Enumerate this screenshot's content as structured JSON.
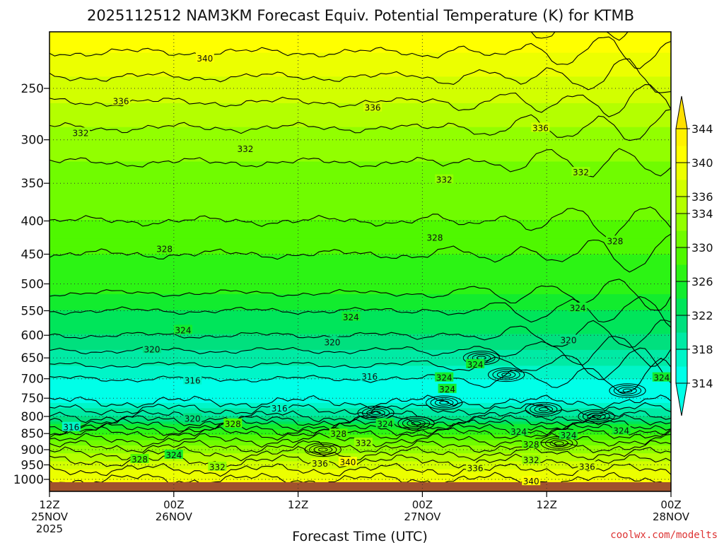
{
  "chart_data": {
    "type": "heatmap",
    "title": "2025112512 NAM3KM Forecast Equiv. Potential Temperature (K) for KTMB",
    "xlabel": "Forecast Time (UTC)",
    "ylabel": "",
    "y_axis": {
      "scale": "log",
      "inverted": true,
      "range": [
        200,
        1050
      ],
      "ticks": [
        250,
        300,
        350,
        400,
        450,
        500,
        550,
        600,
        650,
        700,
        750,
        800,
        850,
        900,
        950,
        1000
      ]
    },
    "x_axis": {
      "range_hours": [
        0,
        60
      ],
      "ticks": [
        {
          "hour": 0,
          "line1": "12Z",
          "line2": "25NOV",
          "line3": "2025"
        },
        {
          "hour": 12,
          "line1": "00Z",
          "line2": "26NOV",
          "line3": ""
        },
        {
          "hour": 24,
          "line1": "12Z",
          "line2": "",
          "line3": ""
        },
        {
          "hour": 36,
          "line1": "00Z",
          "line2": "27NOV",
          "line3": ""
        },
        {
          "hour": 48,
          "line1": "12Z",
          "line2": "",
          "line3": ""
        },
        {
          "hour": 60,
          "line1": "00Z",
          "line2": "28NOV",
          "line3": ""
        }
      ]
    },
    "colorbar": {
      "levels": [
        314,
        316,
        318,
        320,
        322,
        324,
        326,
        328,
        330,
        332,
        334,
        336,
        338,
        340,
        342,
        344
      ],
      "labels": [
        314,
        318,
        322,
        326,
        330,
        334,
        336,
        340,
        344
      ],
      "colors": [
        "#00ffe8",
        "#00f5c8",
        "#00eaa4",
        "#00e07e",
        "#00e55a",
        "#12ec2e",
        "#2cf414",
        "#4ff800",
        "#70fc00",
        "#92ff00",
        "#b4ff00",
        "#d2ff00",
        "#ecff00",
        "#ffff00",
        "#fff200",
        "#ffe000"
      ]
    },
    "profile_by_pressure": {
      "pressure": [
        200,
        250,
        300,
        350,
        400,
        450,
        500,
        550,
        600,
        650,
        700,
        750,
        800,
        850,
        900,
        950,
        1000
      ],
      "theta_e_K": [
        342,
        337,
        333,
        331,
        330,
        328,
        327,
        324,
        322,
        319,
        316,
        315,
        320,
        328,
        333,
        337,
        340
      ]
    },
    "contour_labels": [
      {
        "value": "340",
        "h": 15.0,
        "p": 225
      },
      {
        "value": "336",
        "h": 6.9,
        "p": 262
      },
      {
        "value": "336",
        "h": 31.2,
        "p": 268
      },
      {
        "value": "336",
        "h": 47.4,
        "p": 288
      },
      {
        "value": "332",
        "h": 3.0,
        "p": 293
      },
      {
        "value": "332",
        "h": 18.9,
        "p": 310
      },
      {
        "value": "332",
        "h": 38.1,
        "p": 346
      },
      {
        "value": "332",
        "h": 51.3,
        "p": 337
      },
      {
        "value": "328",
        "h": 11.1,
        "p": 442
      },
      {
        "value": "328",
        "h": 37.2,
        "p": 425
      },
      {
        "value": "328",
        "h": 54.6,
        "p": 430
      },
      {
        "value": "324",
        "h": 29.1,
        "p": 563
      },
      {
        "value": "324",
        "h": 12.9,
        "p": 590
      },
      {
        "value": "324",
        "h": 51.0,
        "p": 545
      },
      {
        "value": "320",
        "h": 9.9,
        "p": 631
      },
      {
        "value": "320",
        "h": 27.3,
        "p": 616
      },
      {
        "value": "320",
        "h": 50.1,
        "p": 611
      },
      {
        "value": "316",
        "h": 13.8,
        "p": 705
      },
      {
        "value": "316",
        "h": 30.9,
        "p": 695
      },
      {
        "value": "316",
        "h": 22.2,
        "p": 778
      },
      {
        "value": "316",
        "h": 2.1,
        "p": 832
      },
      {
        "value": "320",
        "h": 13.8,
        "p": 807
      },
      {
        "value": "324",
        "h": 38.1,
        "p": 698
      },
      {
        "value": "324",
        "h": 41.1,
        "p": 666
      },
      {
        "value": "324",
        "h": 38.4,
        "p": 727
      },
      {
        "value": "324",
        "h": 59.1,
        "p": 698
      },
      {
        "value": "328",
        "h": 17.7,
        "p": 822
      },
      {
        "value": "324",
        "h": 32.4,
        "p": 822
      },
      {
        "value": "324",
        "h": 45.3,
        "p": 845
      },
      {
        "value": "324",
        "h": 50.1,
        "p": 856
      },
      {
        "value": "324",
        "h": 55.2,
        "p": 842
      },
      {
        "value": "328",
        "h": 27.9,
        "p": 852
      },
      {
        "value": "332",
        "h": 30.3,
        "p": 880
      },
      {
        "value": "328",
        "h": 46.5,
        "p": 884
      },
      {
        "value": "328",
        "h": 8.7,
        "p": 932
      },
      {
        "value": "324",
        "h": 12.0,
        "p": 918
      },
      {
        "value": "332",
        "h": 16.2,
        "p": 958
      },
      {
        "value": "336",
        "h": 26.1,
        "p": 946
      },
      {
        "value": "340",
        "h": 28.8,
        "p": 942
      },
      {
        "value": "336",
        "h": 41.1,
        "p": 962
      },
      {
        "value": "332",
        "h": 46.5,
        "p": 935
      },
      {
        "value": "336",
        "h": 51.9,
        "p": 957
      },
      {
        "value": "340",
        "h": 46.5,
        "p": 1008
      }
    ]
  },
  "credit": "coolwx.com/modelts"
}
